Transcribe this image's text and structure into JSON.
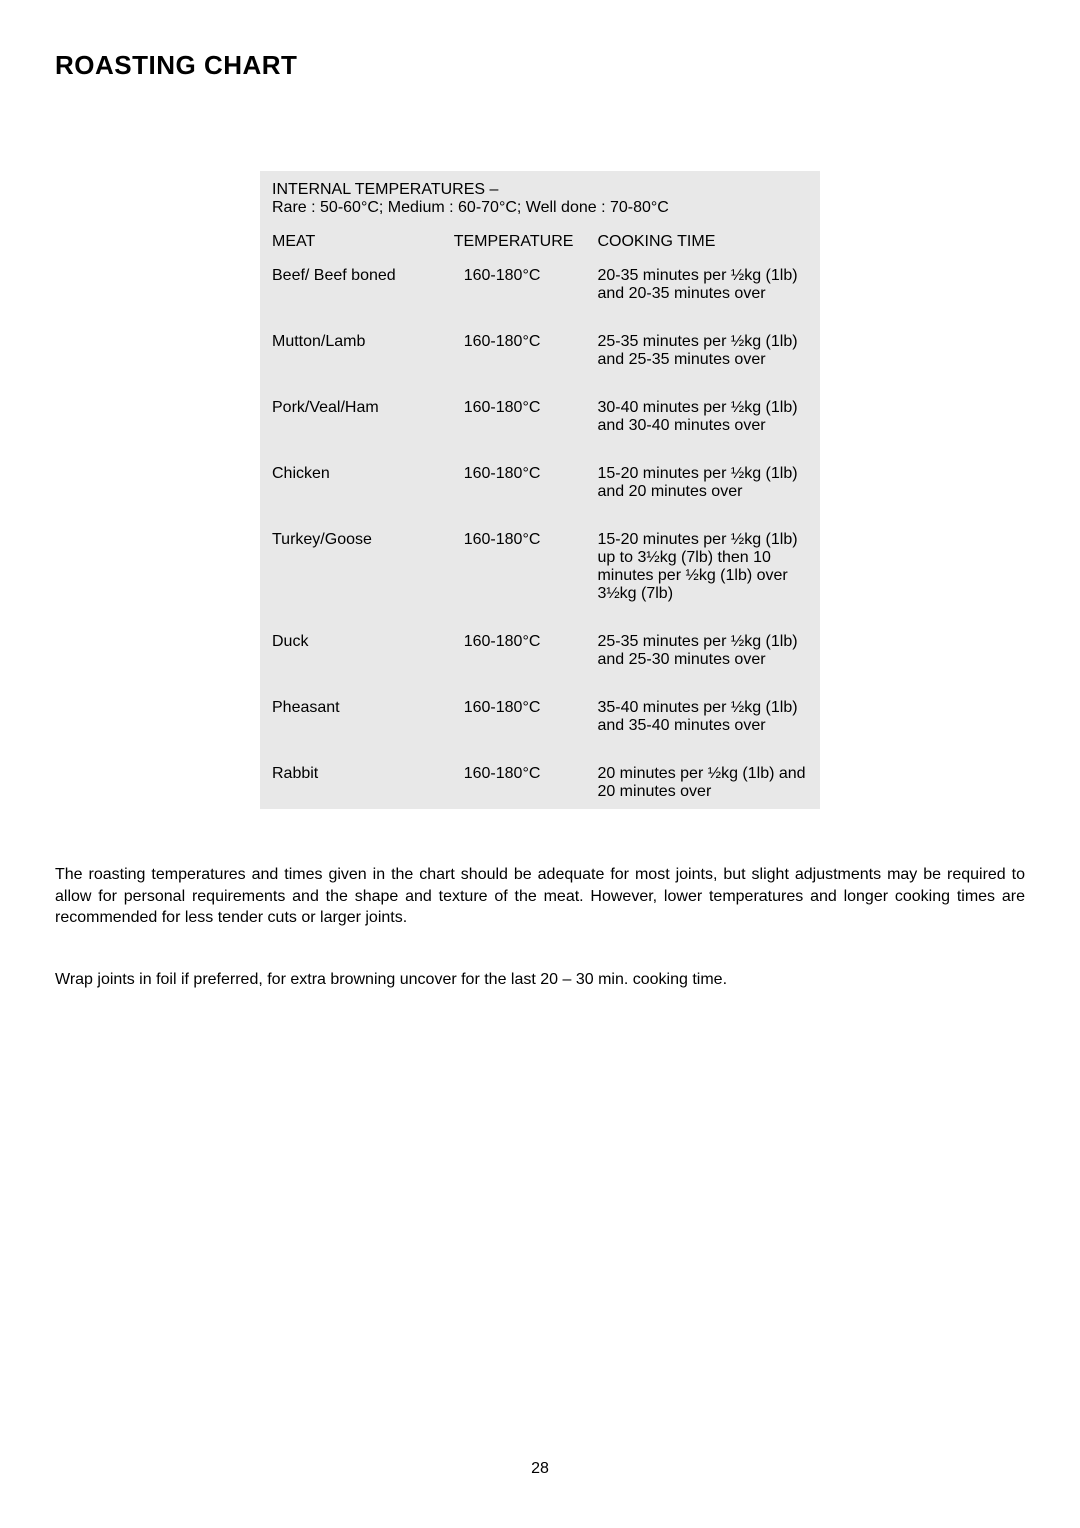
{
  "title": "ROASTING CHART",
  "tableHeader": {
    "line1": "INTERNAL TEMPERATURES –",
    "line2": "Rare : 50-60°C; Medium : 60-70°C; Well done : 70-80°C"
  },
  "columns": {
    "meat": "MEAT",
    "temperature": "TEMPERATURE",
    "cookingTime": "COOKING TIME"
  },
  "rows": [
    {
      "meat": "Beef/ Beef boned",
      "temperature": "160-180°C",
      "cookingTime": "20-35 minutes per ½kg (1lb) and 20-35 minutes over"
    },
    {
      "meat": "Mutton/Lamb",
      "temperature": "160-180°C",
      "cookingTime": "25-35 minutes per ½kg (1lb) and 25-35 minutes over"
    },
    {
      "meat": "Pork/Veal/Ham",
      "temperature": "160-180°C",
      "cookingTime": "30-40 minutes per ½kg (1lb) and 30-40 minutes over"
    },
    {
      "meat": "Chicken",
      "temperature": "160-180°C",
      "cookingTime": "15-20 minutes per ½kg (1lb) and 20 minutes over"
    },
    {
      "meat": "Turkey/Goose",
      "temperature": "160-180°C",
      "cookingTime": "15-20 minutes per ½kg (1lb) up to 3½kg (7lb) then 10 minutes per ½kg (1lb) over 3½kg (7lb)"
    },
    {
      "meat": "Duck",
      "temperature": "160-180°C",
      "cookingTime": "25-35 minutes per ½kg (1lb) and 25-30 minutes over"
    },
    {
      "meat": "Pheasant",
      "temperature": "160-180°C",
      "cookingTime": "35-40 minutes per ½kg (1lb) and 35-40 minutes over"
    },
    {
      "meat": "Rabbit",
      "temperature": "160-180°C",
      "cookingTime": "20 minutes per ½kg (1lb) and 20 minutes over"
    }
  ],
  "paragraph1": "The roasting temperatures and times given in the chart should be adequate for most joints, but slight adjustments may be required to allow for personal requirements and the shape and texture of the meat.  However, lower temperatures and longer cooking times are recommended for less tender cuts or larger joints.",
  "paragraph2": "Wrap joints in foil if preferred, for extra browning uncover for the last 20 – 30 min. cooking time.",
  "pageNumber": "28",
  "styling": {
    "pageWidth": 1080,
    "pageHeight": 1528,
    "backgroundColor": "#ffffff",
    "tableBackgroundColor": "#e8e8e8",
    "textColor": "#000000",
    "titleFontSize": 26,
    "bodyFontSize": 16,
    "tableWidth": 560,
    "colMeatWidth": 168,
    "colTempWidth": 140,
    "colTimeWidth": 252
  }
}
